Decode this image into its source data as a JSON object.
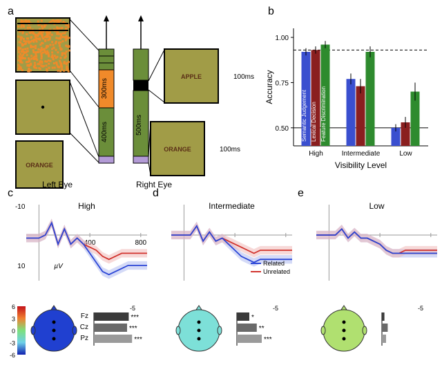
{
  "labels": {
    "a": "a",
    "b": "b",
    "c": "c",
    "d": "d",
    "e": "e"
  },
  "panelA": {
    "leftEye": "Left Eye",
    "rightEye": "Right Eye",
    "t300": "300ms",
    "t400": "400ms",
    "t500": "500ms",
    "t100a": "100ms",
    "t100b": "100ms",
    "t100c": "100ms",
    "wordOrange": "ORANGE",
    "wordApple": "APPLE",
    "colors": {
      "olive": "#a19c47",
      "orange": "#f08a2a",
      "green": "#6b8e3a",
      "purple": "#b39bd6",
      "black": "#000000",
      "darkred": "#5a2e16"
    }
  },
  "panelB": {
    "title": "",
    "ylabel": "Accuracy",
    "xlabel": "Visibility Level",
    "categories": [
      "High",
      "Intermediate",
      "Low"
    ],
    "series_names": [
      "Semantic Judgement",
      "Lexical Decision",
      "Feature Discrimination"
    ],
    "series_colors": [
      "#3a4fcf",
      "#8a1f1f",
      "#2e8b2e"
    ],
    "values": [
      [
        0.92,
        0.93,
        0.96
      ],
      [
        0.77,
        0.73,
        0.92
      ],
      [
        0.5,
        0.53,
        0.7
      ]
    ],
    "errors": [
      [
        0.02,
        0.02,
        0.02
      ],
      [
        0.03,
        0.04,
        0.03
      ],
      [
        0.02,
        0.03,
        0.05
      ]
    ],
    "ylim": [
      0.4,
      1.05
    ],
    "yticks": [
      0.5,
      0.75,
      1.0
    ],
    "hline": 0.93,
    "background": "#ffffff"
  },
  "erp": {
    "ylim": [
      -10,
      15
    ],
    "xlim": [
      -100,
      850
    ],
    "xticks": [
      400,
      800
    ],
    "yticks_labels": [
      "-10",
      "10"
    ],
    "mu": "µV",
    "titles": {
      "c": "High",
      "d": "Intermediate",
      "e": "Low"
    },
    "legend": {
      "related": "Related",
      "unrelated": "Unrelated"
    },
    "colors": {
      "related": "#2b46d6",
      "unrelated": "#d1332e",
      "shade_r": "#a9b5ef",
      "shade_u": "#f0b4b1",
      "black": "#000000"
    },
    "data_c": {
      "t": [
        -100,
        0,
        50,
        100,
        150,
        200,
        250,
        300,
        350,
        400,
        450,
        500,
        550,
        600,
        650,
        700,
        750,
        800,
        850
      ],
      "rel": [
        1,
        1,
        0,
        -4,
        3,
        -2,
        3,
        1,
        3,
        6,
        9,
        12,
        13,
        12,
        11,
        10,
        10,
        10,
        10
      ],
      "unr": [
        1,
        1,
        0,
        -4,
        3,
        -2,
        3,
        1,
        3,
        4,
        5,
        7,
        8,
        7,
        6,
        6,
        6,
        6,
        6
      ]
    },
    "data_d": {
      "t": [
        -100,
        0,
        50,
        100,
        150,
        200,
        250,
        300,
        350,
        400,
        450,
        500,
        550,
        600,
        650,
        700,
        750,
        800,
        850
      ],
      "rel": [
        0,
        0,
        0,
        -3,
        2,
        -1,
        2,
        1,
        3,
        5,
        7,
        8,
        9,
        8,
        8,
        8,
        8,
        8,
        8
      ],
      "unr": [
        0,
        0,
        0,
        -3,
        2,
        -1,
        2,
        1,
        2,
        3,
        4,
        5,
        6,
        5,
        5,
        5,
        5,
        5,
        5
      ]
    },
    "data_e": {
      "t": [
        -100,
        0,
        50,
        100,
        150,
        200,
        250,
        300,
        350,
        400,
        450,
        500,
        550,
        600,
        650,
        700,
        750,
        800,
        850
      ],
      "rel": [
        0,
        0,
        0,
        -2,
        1,
        -1,
        1,
        1,
        2,
        3,
        5,
        6,
        6,
        6,
        6,
        6,
        6,
        6,
        6
      ],
      "unr": [
        0,
        0,
        0,
        -2,
        1,
        -1,
        1,
        1,
        2,
        3,
        5,
        6,
        6,
        5,
        5,
        5,
        5,
        5,
        5
      ],
      "blk": [
        0,
        0,
        0,
        -2,
        1,
        -1,
        1,
        1,
        2,
        3,
        5,
        6,
        6,
        6,
        6,
        6,
        6,
        6,
        6
      ]
    }
  },
  "topo": {
    "colorbar_vals": [
      "6",
      "3",
      "0",
      "-3",
      "-6"
    ],
    "colorbar_colors": [
      "#c4121a",
      "#f08030",
      "#7de07d",
      "#6fd0e8",
      "#1020b0"
    ],
    "electrodes": [
      "Fz",
      "Cz",
      "Pz"
    ],
    "bars_c": {
      "vals": [
        -4.2,
        -4.0,
        -4.6
      ],
      "sig": [
        "***",
        "***",
        "***"
      ]
    },
    "bars_d": {
      "vals": [
        -1.5,
        -2.4,
        -3.0
      ],
      "sig": [
        "*",
        "**",
        "***"
      ]
    },
    "bars_e": {
      "vals": [
        -0.3,
        -0.7,
        -0.5
      ],
      "sig": [
        "",
        "",
        ""
      ]
    },
    "bar_xlim": -5,
    "bar_colors": [
      "#3a3a3a",
      "#6a6a6a",
      "#9a9a9a"
    ],
    "head_colors": {
      "c": "#2040d0",
      "d": "#7de0d8",
      "e": "#b0e070"
    }
  }
}
